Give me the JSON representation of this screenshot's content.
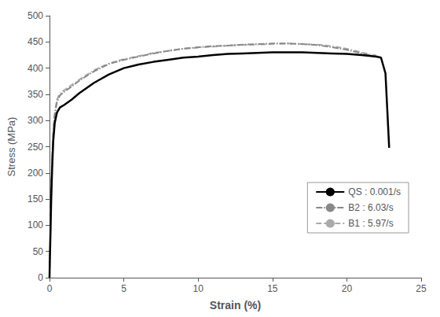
{
  "chart_data": {
    "type": "line",
    "xlabel": "Strain (%)",
    "ylabel": "Stress (MPa)",
    "xlim": [
      0,
      25
    ],
    "ylim": [
      0,
      500
    ],
    "xticks": [
      0,
      5,
      10,
      15,
      20,
      25
    ],
    "yticks": [
      0,
      50,
      100,
      150,
      200,
      250,
      300,
      350,
      400,
      450,
      500
    ],
    "grid": false,
    "legend": "right",
    "series": [
      {
        "name": "QS : 0.001/s",
        "color": "#000000",
        "line_style": "solid",
        "x": [
          0.0,
          0.02,
          0.05,
          0.08,
          0.12,
          0.18,
          0.25,
          0.35,
          0.5,
          0.7,
          1.0,
          1.5,
          2.0,
          3.0,
          4.0,
          5.0,
          6.0,
          7.0,
          8.0,
          9.0,
          10.0,
          11.0,
          12.0,
          13.0,
          14.0,
          15.0,
          16.0,
          17.0,
          18.0,
          19.0,
          20.0,
          21.0,
          22.0,
          22.3,
          22.6,
          22.85
        ],
        "values": [
          0,
          30,
          65,
          105,
          155,
          210,
          260,
          295,
          315,
          325,
          330,
          340,
          352,
          372,
          388,
          400,
          407,
          412,
          416,
          420,
          422,
          425,
          427,
          428,
          429,
          430,
          430,
          430,
          429,
          428,
          427,
          425,
          422,
          420,
          390,
          248
        ]
      },
      {
        "name": "B2 : 6.03/s",
        "color": "#888888",
        "line_style": "dashdot",
        "x": [
          0.0,
          0.02,
          0.05,
          0.08,
          0.12,
          0.18,
          0.25,
          0.35,
          0.5,
          0.7,
          1.0,
          1.5,
          2.0,
          3.0,
          4.0,
          5.0,
          6.0,
          7.0,
          8.0,
          9.0,
          10.0,
          11.0,
          12.0,
          13.0,
          14.0,
          15.0,
          16.0,
          17.0,
          18.0,
          19.0,
          20.0,
          21.0,
          22.0
        ],
        "values": [
          0,
          35,
          75,
          120,
          170,
          230,
          275,
          310,
          335,
          348,
          355,
          365,
          376,
          394,
          408,
          416,
          422,
          428,
          433,
          437,
          440,
          442,
          443,
          445,
          446,
          447,
          447,
          446,
          444,
          440,
          435,
          428,
          422
        ]
      },
      {
        "name": "B1 : 5.97/s",
        "color": "#aaaaaa",
        "line_style": "dashed",
        "x": [
          0.0,
          0.02,
          0.05,
          0.08,
          0.12,
          0.18,
          0.25,
          0.35,
          0.5,
          0.7,
          1.0,
          1.5,
          2.0,
          3.0,
          4.0,
          5.0,
          6.0,
          7.0,
          8.0,
          9.0,
          10.0,
          11.0,
          12.0,
          13.0,
          14.0,
          15.0,
          16.0,
          17.0,
          18.0,
          19.0,
          20.0,
          21.0,
          22.0
        ],
        "values": [
          0,
          38,
          80,
          125,
          175,
          235,
          278,
          315,
          340,
          352,
          358,
          368,
          378,
          396,
          409,
          417,
          423,
          429,
          433,
          437,
          439,
          441,
          443,
          444,
          445,
          446,
          447,
          446,
          445,
          442,
          437,
          430,
          424
        ]
      }
    ]
  }
}
